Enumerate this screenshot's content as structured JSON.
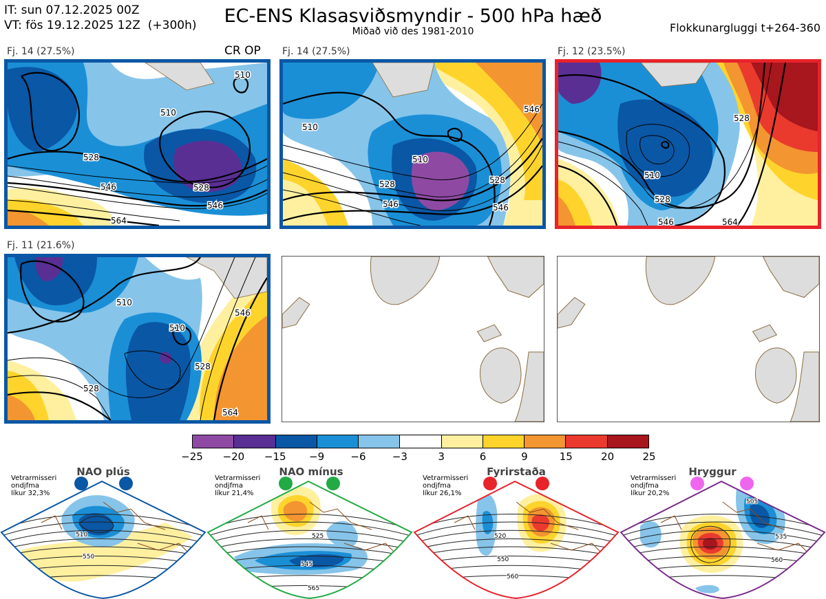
{
  "header": {
    "it": "IT: sun 07.12.2025 00Z",
    "vt": "VT: fös 19.12.2025 12Z  (+300h)",
    "title": "EC-ENS Klasasviðsmyndir - 500 hPa hæð",
    "subtitle": "Miðað við des 1981-2010",
    "window": "Flokkunargluggi t+264-360"
  },
  "panels": [
    {
      "label": "Fj. 14 (27.5%)",
      "tag": "CR OP",
      "regime": "NAO plús",
      "contours": [
        "510",
        "510",
        "528",
        "546",
        "528",
        "546",
        "564"
      ]
    },
    {
      "label": "Fj. 14 (27.5%)",
      "regime": "NAO plús",
      "contours": [
        "510",
        "510",
        "528",
        "546",
        "528",
        "546",
        "546"
      ]
    },
    {
      "label": "Fj. 12 (23.5%)",
      "regime": "Fyrirstaða",
      "contours": [
        "510",
        "528",
        "546",
        "528",
        "564"
      ]
    },
    {
      "label": "Fj. 11 (21.6%)",
      "regime": "NAO plús",
      "contours": [
        "510",
        "510",
        "528",
        "528",
        "546",
        "564"
      ]
    }
  ],
  "colorbar": {
    "colors": [
      "#8e4aa3",
      "#5a2f94",
      "#0a57a5",
      "#1b8fd6",
      "#86c4ea",
      "#ffffff",
      "#fff0a0",
      "#fed42c",
      "#f39530",
      "#ea3a2e",
      "#a8161e"
    ],
    "ticks": [
      "−25",
      "−20",
      "−15",
      "−9",
      "−6",
      "−3",
      "3",
      "6",
      "9",
      "15",
      "20",
      "25"
    ]
  },
  "regimes": [
    {
      "name": "NAO plús",
      "stat_label": "Vetrarmisseri\nondjfma",
      "likur": "líkur 32,3%",
      "color": "#0a57a5",
      "contours": [
        "510",
        "550"
      ]
    },
    {
      "name": "NAO mínus",
      "stat_label": "Vetrarmisseri\nondjfma",
      "likur": "líkur 21,4%",
      "color": "#22aa44",
      "contours": [
        "525",
        "545",
        "565"
      ]
    },
    {
      "name": "Fyrirstaða",
      "stat_label": "Vetrarmisseri\nondjfma",
      "likur": "líkur 26,1%",
      "color": "#e8232a",
      "contours": [
        "520",
        "550",
        "560"
      ]
    },
    {
      "name": "Hryggur",
      "stat_label": "Vetrarmisseri\nondjfma",
      "likur": "líkur 20,2%",
      "color": "#7a2a8c",
      "dot_color": "#ee66ee",
      "contours": [
        "505",
        "535",
        "560"
      ]
    }
  ]
}
